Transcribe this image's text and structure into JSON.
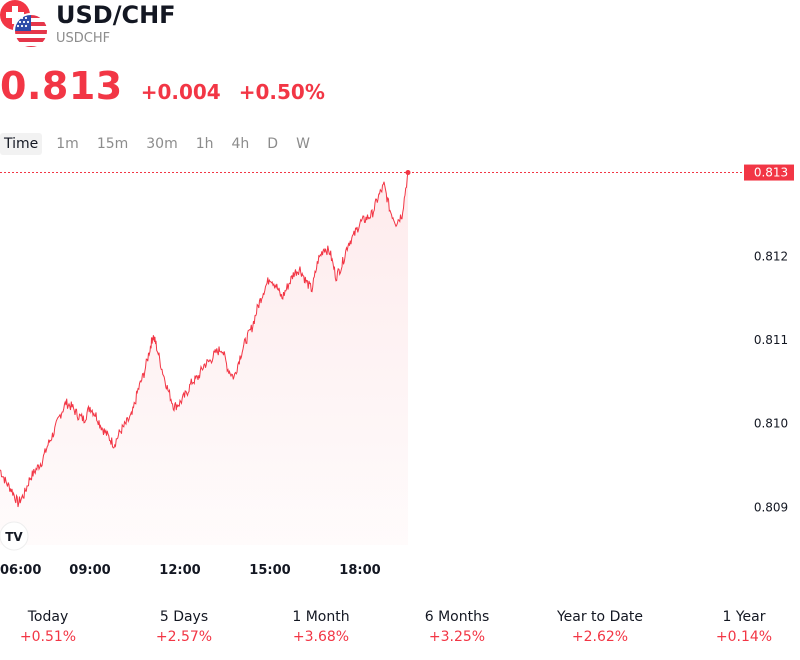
{
  "header": {
    "title": "USD/CHF",
    "symbol": "USDCHF",
    "price": "0.813",
    "change": "+0.004",
    "change_pct": "+0.50%",
    "flags": [
      "swiss-flag-icon",
      "us-flag-icon"
    ]
  },
  "intervals": [
    {
      "label": "Time",
      "active": true
    },
    {
      "label": "1m",
      "active": false
    },
    {
      "label": "15m",
      "active": false
    },
    {
      "label": "30m",
      "active": false
    },
    {
      "label": "1h",
      "active": false
    },
    {
      "label": "4h",
      "active": false
    },
    {
      "label": "D",
      "active": false
    },
    {
      "label": "W",
      "active": false
    }
  ],
  "periods": [
    {
      "label": "Today",
      "value": "+0.51%"
    },
    {
      "label": "5 Days",
      "value": "+2.57%"
    },
    {
      "label": "1 Month",
      "value": "+3.68%"
    },
    {
      "label": "6 Months",
      "value": "+3.25%"
    },
    {
      "label": "Year to Date",
      "value": "+2.62%"
    },
    {
      "label": "1 Year",
      "value": "+0.14%"
    }
  ],
  "colors": {
    "accent": "#f23645",
    "text": "#131722",
    "muted": "#8c8c8c",
    "area_fill": "#fde8ea"
  },
  "chart_data": {
    "type": "area",
    "x_tick_labels": [
      "06:00",
      "09:00",
      "12:00",
      "15:00",
      "18:00"
    ],
    "x_ticks_hours": [
      6,
      9,
      12,
      15,
      18
    ],
    "y_tick_labels": [
      "0.809",
      "0.810",
      "0.811",
      "0.812"
    ],
    "y_ticks": [
      0.809,
      0.81,
      0.811,
      0.812
    ],
    "ylim": [
      0.80855,
      0.81315
    ],
    "xlim_hours": [
      6,
      19.7
    ],
    "last_value": 0.813,
    "last_value_label": "0.813",
    "grid": false,
    "series": [
      {
        "x_hours": [
          6.0,
          6.2,
          6.4,
          6.6,
          6.8,
          7.0,
          7.2,
          7.4,
          7.6,
          7.8,
          8.0,
          8.2,
          8.4,
          8.6,
          8.8,
          9.0,
          9.2,
          9.4,
          9.6,
          9.8,
          10.0,
          10.2,
          10.4,
          10.6,
          10.8,
          11.0,
          11.1,
          11.2,
          11.4,
          11.6,
          11.8,
          12.0,
          12.2,
          12.4,
          12.6,
          12.8,
          13.0,
          13.2,
          13.4,
          13.6,
          13.8,
          14.0,
          14.2,
          14.4,
          14.6,
          14.8,
          15.0,
          15.2,
          15.4,
          15.6,
          15.8,
          16.0,
          16.2,
          16.4,
          16.6,
          16.8,
          17.0,
          17.2,
          17.4,
          17.6,
          17.8,
          18.0,
          18.2,
          18.4,
          18.6,
          18.8,
          19.0,
          19.2,
          19.4,
          19.6
        ],
        "values": [
          0.80945,
          0.8093,
          0.8092,
          0.80905,
          0.80915,
          0.80935,
          0.80945,
          0.80955,
          0.80975,
          0.8099,
          0.8101,
          0.81025,
          0.8102,
          0.8101,
          0.81005,
          0.8102,
          0.8101,
          0.80995,
          0.80985,
          0.80975,
          0.8099,
          0.81,
          0.8101,
          0.8104,
          0.8106,
          0.8109,
          0.81105,
          0.81095,
          0.81065,
          0.8104,
          0.8102,
          0.81025,
          0.81035,
          0.8105,
          0.81055,
          0.8107,
          0.81075,
          0.81085,
          0.8109,
          0.81065,
          0.81055,
          0.8108,
          0.811,
          0.81115,
          0.8114,
          0.8116,
          0.81175,
          0.81165,
          0.8115,
          0.81165,
          0.8118,
          0.81185,
          0.8117,
          0.8116,
          0.81195,
          0.8121,
          0.81205,
          0.81175,
          0.8119,
          0.81215,
          0.81225,
          0.8124,
          0.81245,
          0.8125,
          0.8127,
          0.81285,
          0.81255,
          0.8124,
          0.8125,
          0.813
        ]
      }
    ]
  }
}
